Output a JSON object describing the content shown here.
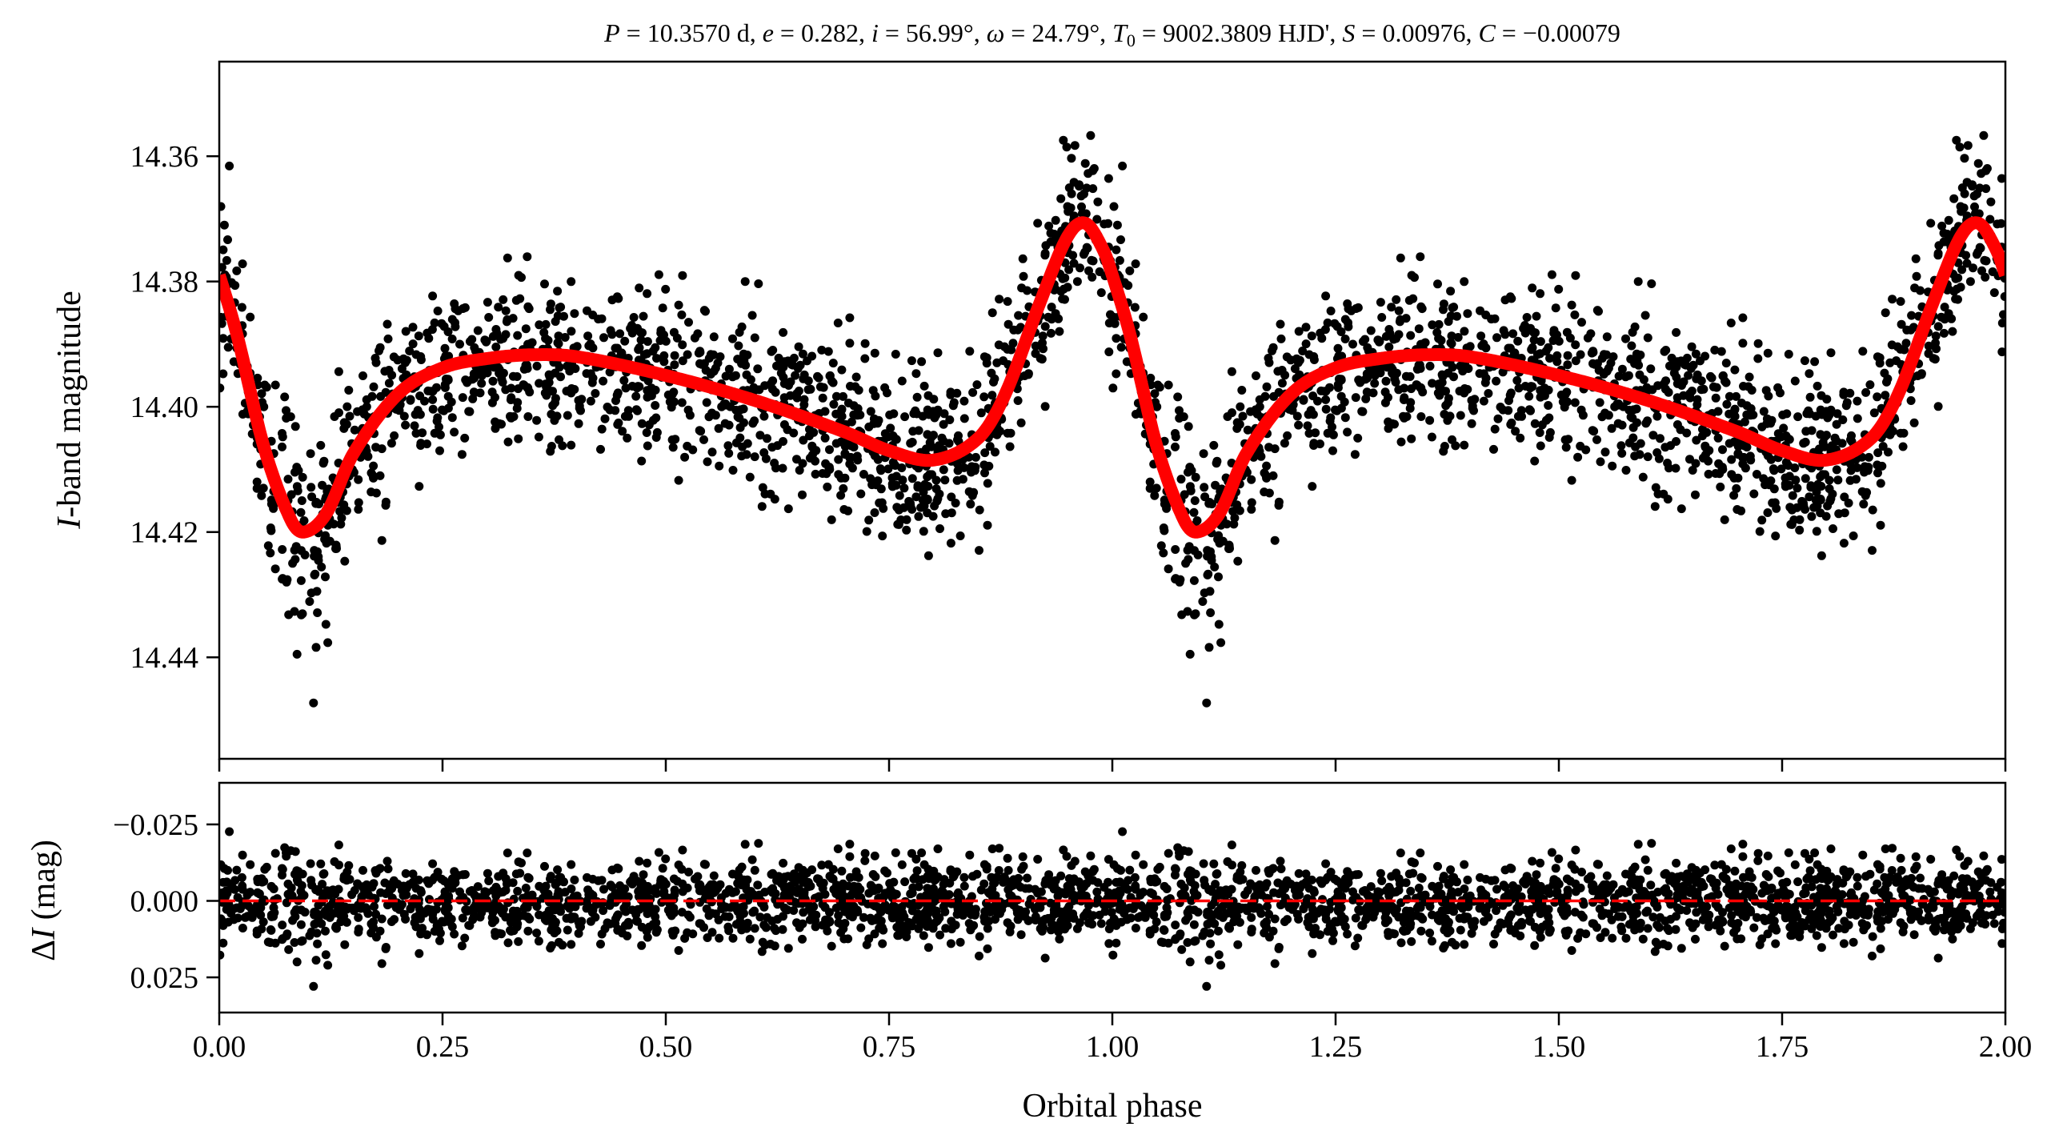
{
  "chart_data": [
    {
      "type": "scatter",
      "panel": "light-curve",
      "title": "P = 10.3570 d, e = 0.282, i = 56.99°, ω = 24.79°, T0 = 9002.3809 HJD', S = 0.00976, C = −0.00079",
      "title_parts": {
        "P": "P",
        "P_val": " = 10.3570 d, ",
        "e": "e",
        "e_val": " = 0.282, ",
        "i": "i",
        "i_val": " = 56.99°, ",
        "w": "ω",
        "w_val": " = 24.79°, ",
        "T": "T",
        "T_sub": "0",
        "T_val": " = 9002.3809 HJD', ",
        "S": "S",
        "S_val": " = 0.00976, ",
        "C": "C",
        "C_val": " = −0.00079"
      },
      "ylabel_italic": "I",
      "ylabel_rest": "-band magnitude",
      "xlim": [
        0,
        2
      ],
      "ylim": [
        14.4562,
        14.3449
      ],
      "yticks": [
        14.36,
        14.38,
        14.4,
        14.42,
        14.44
      ],
      "ytick_labels": [
        "14.36",
        "14.38",
        "14.40",
        "14.42",
        "14.44"
      ],
      "model": {
        "name": "model fit",
        "color": "#ff0000",
        "phase": [
          0.0,
          0.02,
          0.05,
          0.08,
          0.095,
          0.12,
          0.15,
          0.2,
          0.25,
          0.3,
          0.35,
          0.4,
          0.5,
          0.6,
          0.7,
          0.75,
          0.8,
          0.85,
          0.88,
          0.92,
          0.95,
          0.97,
          0.99,
          1.0
        ],
        "mag": [
          14.379,
          14.3886,
          14.4064,
          14.418,
          14.42,
          14.417,
          14.4075,
          14.398,
          14.3938,
          14.3923,
          14.3917,
          14.392,
          14.395,
          14.399,
          14.404,
          14.407,
          14.4085,
          14.405,
          14.398,
          14.383,
          14.3728,
          14.3707,
          14.375,
          14.379
        ]
      },
      "observations": {
        "name": "I-band photometry",
        "color": "#000000",
        "n_per_cycle": 1400,
        "residual_sigma_mag": 0.0065,
        "phase_repeated": true
      }
    },
    {
      "type": "scatter",
      "panel": "residuals",
      "ylabel_prefix": "Δ",
      "ylabel_italic": "I",
      "ylabel_rest": " (mag)",
      "xlabel": "Orbital phase",
      "xlim": [
        0,
        2
      ],
      "ylim": [
        0.0365,
        -0.0386
      ],
      "yticks": [
        -0.025,
        0.0,
        0.025
      ],
      "ytick_labels": [
        "−0.025",
        "0.000",
        "0.025"
      ],
      "xticks": [
        0,
        0.25,
        0.5,
        0.75,
        1.0,
        1.25,
        1.5,
        1.75,
        2.0
      ],
      "xtick_labels": [
        "0.00",
        "0.25",
        "0.50",
        "0.75",
        "1.00",
        "1.25",
        "1.50",
        "1.75",
        "2.00"
      ],
      "zero_line": {
        "value": 0.0,
        "color": "#ff0000",
        "style": "dashed"
      }
    }
  ]
}
